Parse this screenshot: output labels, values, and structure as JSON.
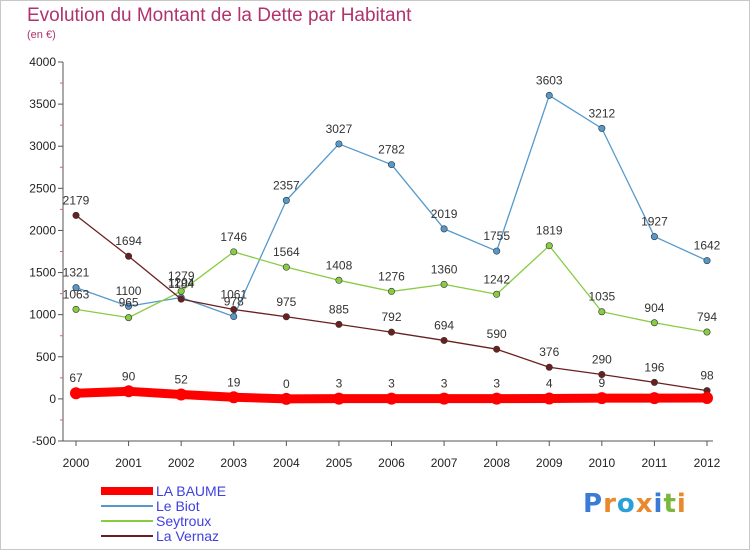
{
  "header": {
    "title": "Evolution du Montant de la Dette par Habitant",
    "subtitle": "(en €)"
  },
  "logo": {
    "text": "Proxiti"
  },
  "chart_data": {
    "type": "line",
    "x": [
      "2000",
      "2001",
      "2002",
      "2003",
      "2004",
      "2005",
      "2006",
      "2007",
      "2008",
      "2009",
      "2010",
      "2011",
      "2012"
    ],
    "ylim": [
      -500,
      4000
    ],
    "yticks": [
      -500,
      0,
      500,
      1000,
      1500,
      2000,
      2500,
      3000,
      3500,
      4000
    ],
    "grid": false,
    "legend_position": "bottom-left",
    "series": [
      {
        "name": "LA BAUME",
        "color": "#ff0000",
        "values": [
          67,
          90,
          52,
          19,
          0,
          3,
          3,
          3,
          3,
          4,
          9,
          9,
          10
        ],
        "labels": [
          "67",
          "90",
          "52",
          "19",
          "0",
          "3",
          "3",
          "3",
          "3",
          "4",
          "9",
          "",
          ""
        ]
      },
      {
        "name": "Le Biot",
        "color": "#5599cc",
        "values": [
          1321,
          1100,
          1204,
          978,
          2357,
          3027,
          2782,
          2019,
          1755,
          3603,
          3212,
          1927,
          1642
        ],
        "labels": [
          "1321",
          "1100",
          "1204",
          "978",
          "2357",
          "3027",
          "2782",
          "2019",
          "1755",
          "3603",
          "3212",
          "1927",
          "1642"
        ]
      },
      {
        "name": "Seytroux",
        "color": "#88cc44",
        "values": [
          1063,
          965,
          1279,
          1746,
          1564,
          1408,
          1276,
          1360,
          1242,
          1819,
          1035,
          904,
          794
        ],
        "labels": [
          "1063",
          "965",
          "1279",
          "1746",
          "1564",
          "1408",
          "1276",
          "1360",
          "1242",
          "1819",
          "1035",
          "904",
          "794"
        ]
      },
      {
        "name": "La Vernaz",
        "color": "#6b2020",
        "values": [
          2179,
          1694,
          1184,
          1061,
          975,
          885,
          792,
          694,
          590,
          376,
          290,
          196,
          98
        ],
        "labels": [
          "2179",
          "1694",
          "1184",
          "1061",
          "975",
          "885",
          "792",
          "694",
          "590",
          "376",
          "290",
          "196",
          "98"
        ]
      }
    ]
  }
}
